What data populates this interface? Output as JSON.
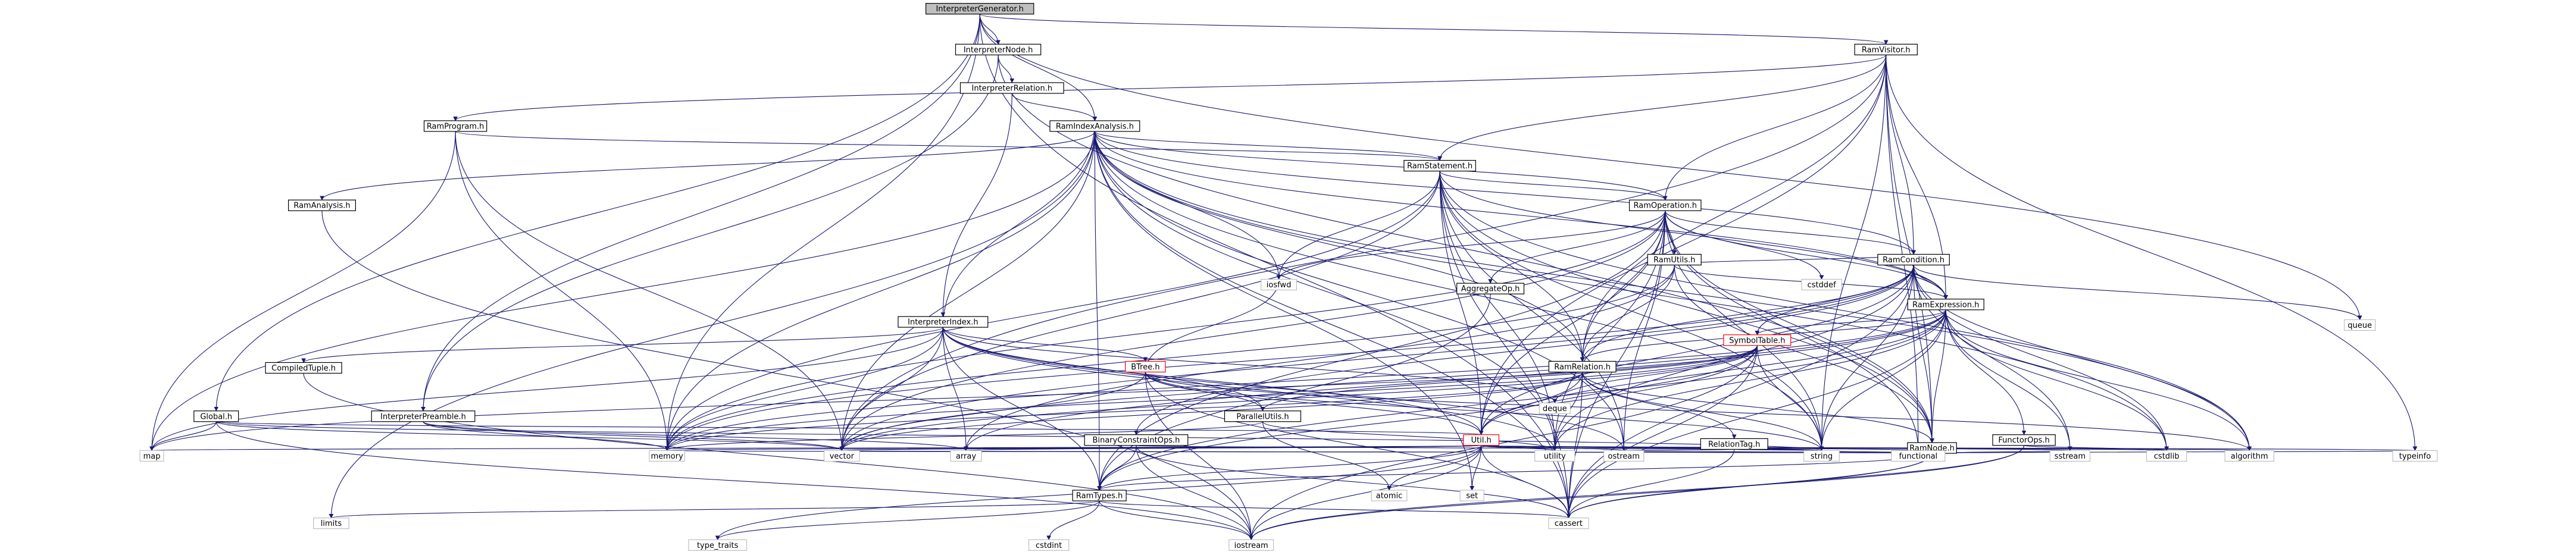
{
  "nodes": [
    {
      "id": "interp_gen",
      "label": "InterpreterGenerator.h",
      "kind": "root"
    },
    {
      "id": "interp_node",
      "label": "InterpreterNode.h",
      "kind": "file"
    },
    {
      "id": "ram_visitor",
      "label": "RamVisitor.h",
      "kind": "file"
    },
    {
      "id": "interp_relation",
      "label": "InterpreterRelation.h",
      "kind": "file"
    },
    {
      "id": "ram_program",
      "label": "RamProgram.h",
      "kind": "file"
    },
    {
      "id": "ram_index_analysis",
      "label": "RamIndexAnalysis.h",
      "kind": "file"
    },
    {
      "id": "ram_statement",
      "label": "RamStatement.h",
      "kind": "file"
    },
    {
      "id": "ram_analysis",
      "label": "RamAnalysis.h",
      "kind": "file"
    },
    {
      "id": "ram_operation",
      "label": "RamOperation.h",
      "kind": "file"
    },
    {
      "id": "ram_utils",
      "label": "RamUtils.h",
      "kind": "file"
    },
    {
      "id": "aggregate_op",
      "label": "AggregateOp.h",
      "kind": "file"
    },
    {
      "id": "ram_condition",
      "label": "RamCondition.h",
      "kind": "file"
    },
    {
      "id": "interp_index",
      "label": "InterpreterIndex.h",
      "kind": "file"
    },
    {
      "id": "ram_expression",
      "label": "RamExpression.h",
      "kind": "file"
    },
    {
      "id": "compiled_tuple",
      "label": "CompiledTuple.h",
      "kind": "file"
    },
    {
      "id": "btree",
      "label": "BTree.h",
      "kind": "red"
    },
    {
      "id": "symbol_table",
      "label": "SymbolTable.h",
      "kind": "red"
    },
    {
      "id": "ram_relation",
      "label": "RamRelation.h",
      "kind": "file"
    },
    {
      "id": "global",
      "label": "Global.h",
      "kind": "file"
    },
    {
      "id": "interp_preamble",
      "label": "InterpreterPreamble.h",
      "kind": "file"
    },
    {
      "id": "parallel_utils",
      "label": "ParallelUtils.h",
      "kind": "file"
    },
    {
      "id": "binary_constraint",
      "label": "BinaryConstraintOps.h",
      "kind": "file"
    },
    {
      "id": "util",
      "label": "Util.h",
      "kind": "red"
    },
    {
      "id": "relation_tag",
      "label": "RelationTag.h",
      "kind": "file"
    },
    {
      "id": "ram_node",
      "label": "RamNode.h",
      "kind": "file"
    },
    {
      "id": "functor_ops",
      "label": "FunctorOps.h",
      "kind": "file"
    },
    {
      "id": "ram_types",
      "label": "RamTypes.h",
      "kind": "file"
    },
    {
      "id": "iosfwd",
      "label": "iosfwd",
      "kind": "extern"
    },
    {
      "id": "cstddef",
      "label": "cstddef",
      "kind": "extern"
    },
    {
      "id": "queue",
      "label": "queue",
      "kind": "extern"
    },
    {
      "id": "deque",
      "label": "deque",
      "kind": "extern"
    },
    {
      "id": "map",
      "label": "map",
      "kind": "extern"
    },
    {
      "id": "memory",
      "label": "memory",
      "kind": "extern"
    },
    {
      "id": "vector",
      "label": "vector",
      "kind": "extern"
    },
    {
      "id": "array",
      "label": "array",
      "kind": "extern"
    },
    {
      "id": "atomic",
      "label": "atomic",
      "kind": "extern"
    },
    {
      "id": "set",
      "label": "set",
      "kind": "extern"
    },
    {
      "id": "utility",
      "label": "utility",
      "kind": "extern"
    },
    {
      "id": "ostream",
      "label": "ostream",
      "kind": "extern"
    },
    {
      "id": "string",
      "label": "string",
      "kind": "extern"
    },
    {
      "id": "functional",
      "label": "functional",
      "kind": "extern"
    },
    {
      "id": "sstream",
      "label": "sstream",
      "kind": "extern"
    },
    {
      "id": "cstdlib",
      "label": "cstdlib",
      "kind": "extern"
    },
    {
      "id": "algorithm",
      "label": "algorithm",
      "kind": "extern"
    },
    {
      "id": "typeinfo",
      "label": "typeinfo",
      "kind": "extern"
    },
    {
      "id": "limits",
      "label": "limits",
      "kind": "extern"
    },
    {
      "id": "type_traits",
      "label": "type_traits",
      "kind": "extern"
    },
    {
      "id": "cstdint",
      "label": "cstdint",
      "kind": "extern"
    },
    {
      "id": "iostream",
      "label": "iostream",
      "kind": "extern"
    },
    {
      "id": "cassert",
      "label": "cassert",
      "kind": "extern"
    }
  ],
  "edges": [
    [
      "interp_gen",
      "interp_node"
    ],
    [
      "interp_gen",
      "ram_visitor"
    ],
    [
      "interp_gen",
      "ram_index_analysis"
    ],
    [
      "interp_gen",
      "interp_preamble"
    ],
    [
      "interp_gen",
      "global"
    ],
    [
      "interp_gen",
      "memory"
    ],
    [
      "interp_gen",
      "queue"
    ],
    [
      "interp_gen",
      "cassert"
    ],
    [
      "interp_node",
      "interp_relation"
    ],
    [
      "interp_node",
      "interp_preamble"
    ],
    [
      "interp_node",
      "ram_node"
    ],
    [
      "interp_relation",
      "ram_index_analysis"
    ],
    [
      "interp_relation",
      "interp_index"
    ],
    [
      "ram_visitor",
      "ram_program"
    ],
    [
      "ram_visitor",
      "ram_statement"
    ],
    [
      "ram_visitor",
      "ram_operation"
    ],
    [
      "ram_visitor",
      "ram_condition"
    ],
    [
      "ram_visitor",
      "ram_expression"
    ],
    [
      "ram_visitor",
      "ram_relation"
    ],
    [
      "ram_visitor",
      "ram_node"
    ],
    [
      "ram_visitor",
      "util"
    ],
    [
      "ram_visitor",
      "vector"
    ],
    [
      "ram_visitor",
      "functional"
    ],
    [
      "ram_visitor",
      "typeinfo"
    ],
    [
      "ram_visitor",
      "string"
    ],
    [
      "ram_program",
      "ram_statement"
    ],
    [
      "ram_program",
      "map"
    ],
    [
      "ram_program",
      "memory"
    ],
    [
      "ram_program",
      "vector"
    ],
    [
      "ram_index_analysis",
      "ram_statement"
    ],
    [
      "ram_index_analysis",
      "ram_analysis"
    ],
    [
      "ram_index_analysis",
      "ram_operation"
    ],
    [
      "ram_index_analysis",
      "ram_relation"
    ],
    [
      "ram_index_analysis",
      "ram_types"
    ],
    [
      "ram_index_analysis",
      "ram_expression"
    ],
    [
      "ram_index_analysis",
      "ram_condition"
    ],
    [
      "ram_index_analysis",
      "iosfwd"
    ],
    [
      "ram_index_analysis",
      "map"
    ],
    [
      "ram_index_analysis",
      "memory"
    ],
    [
      "ram_index_analysis",
      "vector"
    ],
    [
      "ram_index_analysis",
      "set"
    ],
    [
      "ram_index_analysis",
      "limits"
    ],
    [
      "ram_index_analysis",
      "string"
    ],
    [
      "ram_index_analysis",
      "utility"
    ],
    [
      "ram_index_analysis",
      "cassert"
    ],
    [
      "ram_index_analysis",
      "cstdlib"
    ],
    [
      "ram_index_analysis",
      "algorithm"
    ],
    [
      "ram_index_analysis",
      "ostream"
    ],
    [
      "ram_analysis",
      "iostream"
    ],
    [
      "ram_statement",
      "ram_operation"
    ],
    [
      "ram_statement",
      "ram_expression"
    ],
    [
      "ram_statement",
      "ram_relation"
    ],
    [
      "ram_statement",
      "ram_node"
    ],
    [
      "ram_statement",
      "util"
    ],
    [
      "ram_statement",
      "iosfwd"
    ],
    [
      "ram_statement",
      "memory"
    ],
    [
      "ram_statement",
      "vector"
    ],
    [
      "ram_statement",
      "string"
    ],
    [
      "ram_statement",
      "utility"
    ],
    [
      "ram_statement",
      "ostream"
    ],
    [
      "ram_statement",
      "cassert"
    ],
    [
      "ram_statement",
      "algorithm"
    ],
    [
      "ram_operation",
      "ram_condition"
    ],
    [
      "ram_operation",
      "ram_expression"
    ],
    [
      "ram_operation",
      "ram_relation"
    ],
    [
      "ram_operation",
      "ram_node"
    ],
    [
      "ram_operation",
      "ram_utils"
    ],
    [
      "ram_operation",
      "aggregate_op"
    ],
    [
      "ram_operation",
      "util"
    ],
    [
      "ram_operation",
      "ram_types"
    ],
    [
      "ram_operation",
      "iosfwd"
    ],
    [
      "ram_operation",
      "cstddef"
    ],
    [
      "ram_operation",
      "memory"
    ],
    [
      "ram_operation",
      "vector"
    ],
    [
      "ram_operation",
      "string"
    ],
    [
      "ram_operation",
      "cassert"
    ],
    [
      "ram_operation",
      "ostream"
    ],
    [
      "ram_operation",
      "functional"
    ],
    [
      "ram_operation",
      "utility"
    ],
    [
      "ram_utils",
      "ram_condition"
    ],
    [
      "ram_utils",
      "ram_expression"
    ],
    [
      "ram_utils",
      "ram_node"
    ],
    [
      "ram_utils",
      "ram_relation"
    ],
    [
      "ram_utils",
      "memory"
    ],
    [
      "ram_utils",
      "array"
    ],
    [
      "aggregate_op",
      "ram_types"
    ],
    [
      "ram_condition",
      "ram_expression"
    ],
    [
      "ram_condition",
      "ram_relation"
    ],
    [
      "ram_condition",
      "ram_node"
    ],
    [
      "ram_condition",
      "symbol_table"
    ],
    [
      "ram_condition",
      "binary_constraint"
    ],
    [
      "ram_condition",
      "util"
    ],
    [
      "ram_condition",
      "memory"
    ],
    [
      "ram_condition",
      "vector"
    ],
    [
      "ram_condition",
      "string"
    ],
    [
      "ram_condition",
      "sstream"
    ],
    [
      "ram_condition",
      "cassert"
    ],
    [
      "ram_condition",
      "cstdlib"
    ],
    [
      "ram_condition",
      "algorithm"
    ],
    [
      "ram_condition",
      "queue"
    ],
    [
      "ram_condition",
      "utility"
    ],
    [
      "ram_expression",
      "ram_relation"
    ],
    [
      "ram_expression",
      "ram_node"
    ],
    [
      "ram_expression",
      "symbol_table"
    ],
    [
      "ram_expression",
      "functor_ops"
    ],
    [
      "ram_expression",
      "util"
    ],
    [
      "ram_expression",
      "ram_types"
    ],
    [
      "ram_expression",
      "memory"
    ],
    [
      "ram_expression",
      "vector"
    ],
    [
      "ram_expression",
      "string"
    ],
    [
      "ram_expression",
      "sstream"
    ],
    [
      "ram_expression",
      "cassert"
    ],
    [
      "ram_expression",
      "cstdlib"
    ],
    [
      "ram_expression",
      "algorithm"
    ],
    [
      "ram_expression",
      "array"
    ],
    [
      "ram_expression",
      "utility"
    ],
    [
      "interp_index",
      "compiled_tuple"
    ],
    [
      "interp_index",
      "btree"
    ],
    [
      "interp_index",
      "parallel_utils"
    ],
    [
      "interp_index",
      "ram_types"
    ],
    [
      "interp_index",
      "util"
    ],
    [
      "interp_index",
      "ram_index_analysis"
    ],
    [
      "interp_index",
      "map"
    ],
    [
      "interp_index",
      "memory"
    ],
    [
      "interp_index",
      "vector"
    ],
    [
      "interp_index",
      "array"
    ],
    [
      "interp_index",
      "deque"
    ],
    [
      "interp_index",
      "utility"
    ],
    [
      "interp_index",
      "ostream"
    ],
    [
      "compiled_tuple",
      "iostream"
    ],
    [
      "btree",
      "parallel_utils"
    ],
    [
      "btree",
      "util"
    ],
    [
      "btree",
      "vector"
    ],
    [
      "btree",
      "iostream"
    ],
    [
      "btree",
      "cassert"
    ],
    [
      "btree",
      "algorithm"
    ],
    [
      "btree",
      "iosfwd"
    ],
    [
      "btree",
      "string"
    ],
    [
      "symbol_table",
      "parallel_utils"
    ],
    [
      "symbol_table",
      "ram_types"
    ],
    [
      "symbol_table",
      "util"
    ],
    [
      "symbol_table",
      "deque"
    ],
    [
      "symbol_table",
      "map"
    ],
    [
      "symbol_table",
      "memory"
    ],
    [
      "symbol_table",
      "vector"
    ],
    [
      "symbol_table",
      "string"
    ],
    [
      "symbol_table",
      "iostream"
    ],
    [
      "symbol_table",
      "cassert"
    ],
    [
      "ram_relation",
      "relation_tag"
    ],
    [
      "ram_relation",
      "ram_node"
    ],
    [
      "ram_relation",
      "util"
    ],
    [
      "ram_relation",
      "memory"
    ],
    [
      "ram_relation",
      "vector"
    ],
    [
      "ram_relation",
      "string"
    ],
    [
      "ram_relation",
      "utility"
    ],
    [
      "ram_relation",
      "cassert"
    ],
    [
      "relation_tag",
      "string"
    ],
    [
      "relation_tag",
      "ostream"
    ],
    [
      "relation_tag",
      "cassert"
    ],
    [
      "global",
      "util"
    ],
    [
      "global",
      "map"
    ],
    [
      "global",
      "vector"
    ],
    [
      "global",
      "string"
    ],
    [
      "global",
      "iostream"
    ],
    [
      "interp_preamble",
      "memory"
    ],
    [
      "interp_preamble",
      "vector"
    ],
    [
      "interp_preamble",
      "array"
    ],
    [
      "parallel_utils",
      "atomic"
    ],
    [
      "parallel_utils",
      "memory"
    ],
    [
      "parallel_utils",
      "utility"
    ],
    [
      "binary_constraint",
      "ram_types"
    ],
    [
      "binary_constraint",
      "iostream"
    ],
    [
      "binary_constraint",
      "cassert"
    ],
    [
      "binary_constraint",
      "string"
    ],
    [
      "util",
      "ram_types"
    ],
    [
      "util",
      "map"
    ],
    [
      "util",
      "memory"
    ],
    [
      "util",
      "vector"
    ],
    [
      "util",
      "array"
    ],
    [
      "util",
      "atomic"
    ],
    [
      "util",
      "set"
    ],
    [
      "util",
      "utility"
    ],
    [
      "util",
      "ostream"
    ],
    [
      "util",
      "string"
    ],
    [
      "util",
      "functional"
    ],
    [
      "util",
      "sstream"
    ],
    [
      "util",
      "cstdlib"
    ],
    [
      "util",
      "algorithm"
    ],
    [
      "util",
      "iostream"
    ],
    [
      "util",
      "cassert"
    ],
    [
      "util",
      "type_traits"
    ],
    [
      "util",
      "typeinfo"
    ],
    [
      "ram_node",
      "ram_types"
    ],
    [
      "ram_node",
      "functional"
    ],
    [
      "ram_node",
      "vector"
    ],
    [
      "ram_node",
      "cassert"
    ],
    [
      "ram_node",
      "memory"
    ],
    [
      "ram_node",
      "ostream"
    ],
    [
      "ram_node",
      "iostream"
    ],
    [
      "ram_node",
      "typeinfo"
    ],
    [
      "ram_node",
      "sstream"
    ],
    [
      "ram_node",
      "string"
    ],
    [
      "functor_ops",
      "cassert"
    ],
    [
      "functor_ops",
      "cstdlib"
    ],
    [
      "functor_ops",
      "iostream"
    ],
    [
      "ram_types",
      "cstdint"
    ],
    [
      "ram_types",
      "limits"
    ],
    [
      "ram_types",
      "type_traits"
    ],
    [
      "ram_types",
      "iostream"
    ],
    [
      "ram_types",
      "cassert"
    ]
  ]
}
